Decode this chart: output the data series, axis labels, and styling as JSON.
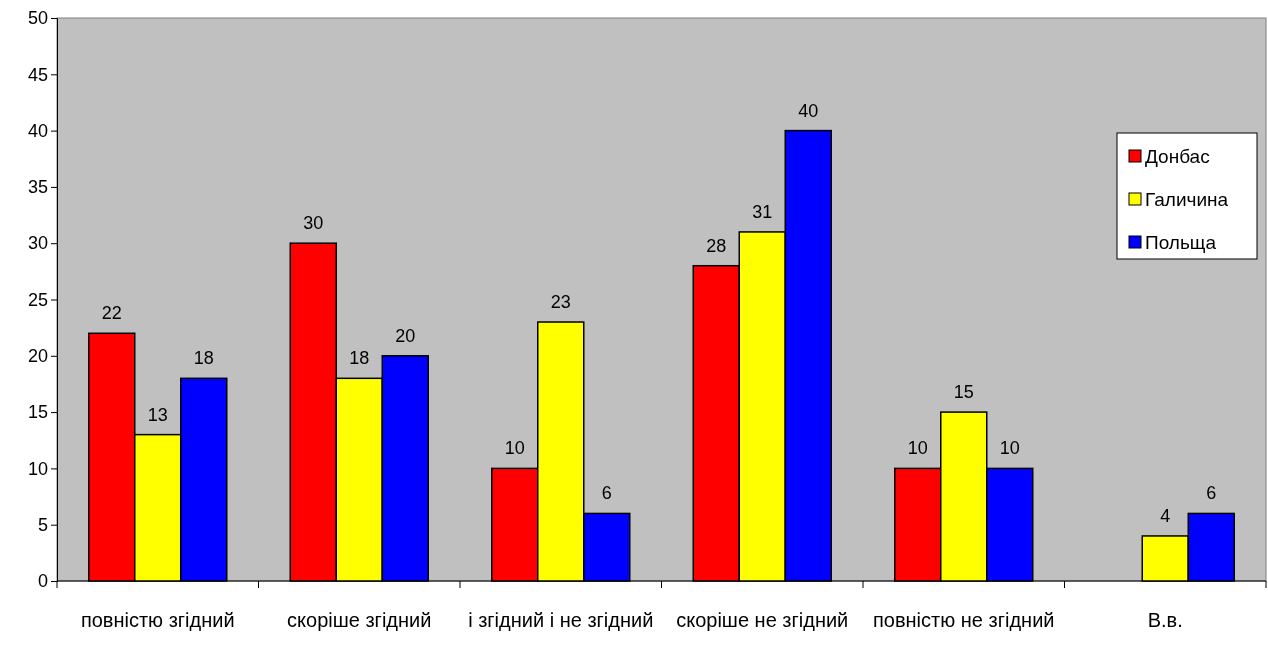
{
  "chart_data": {
    "type": "bar",
    "categories": [
      "повністю згідний",
      "скоріше згідний",
      "і згідний і не згідний",
      "скоріше не згідний",
      "повністю не згідний",
      "В.в."
    ],
    "series": [
      {
        "name": "Донбас",
        "color": "#ff0000",
        "values": [
          22,
          30,
          10,
          28,
          10,
          null
        ]
      },
      {
        "name": "Галичина",
        "color": "#ffff00",
        "values": [
          13,
          18,
          23,
          31,
          15,
          4
        ]
      },
      {
        "name": "Польща",
        "color": "#0000ff",
        "values": [
          18,
          20,
          6,
          40,
          10,
          6
        ]
      }
    ],
    "ylim": [
      0,
      50
    ],
    "yticks": [
      0,
      5,
      10,
      15,
      20,
      25,
      30,
      35,
      40,
      45,
      50
    ],
    "data_labels": true,
    "legend": "right",
    "grid": false
  }
}
